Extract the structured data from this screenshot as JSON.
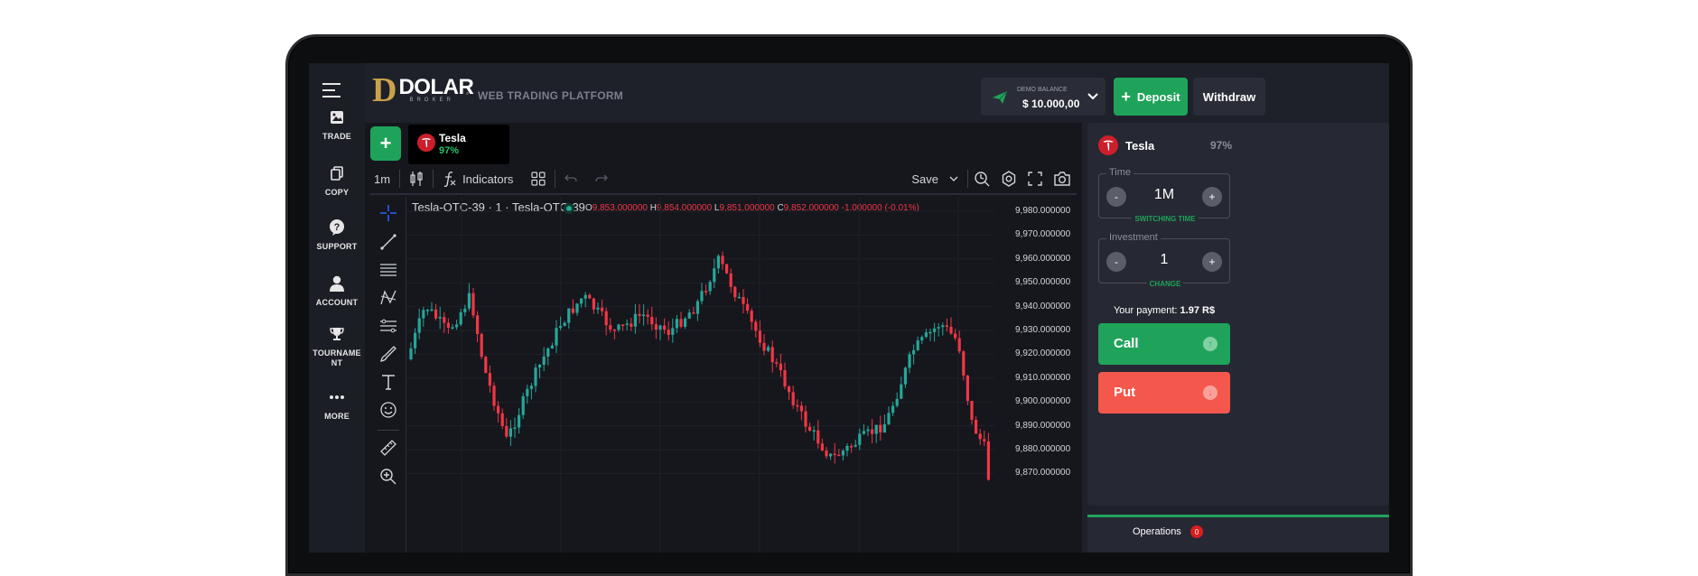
{
  "sidebar": {
    "items": [
      {
        "label": "TRADE",
        "icon": "image-icon"
      },
      {
        "label": "COPY",
        "icon": "copy-icon"
      },
      {
        "label": "SUPPORT",
        "icon": "question-icon"
      },
      {
        "label": "ACCOUNT",
        "icon": "user-icon"
      },
      {
        "label": "TOURNAME\nNT",
        "icon": "trophy-icon"
      },
      {
        "label": "MORE",
        "icon": "more-icon"
      }
    ]
  },
  "header": {
    "logo_letter": "D",
    "logo_word": "DOLAR",
    "logo_sub": "BROKER",
    "platform_label": "WEB TRADING PLATFORM",
    "balance_label": "DEMO BALANCE",
    "balance_value": "$ 10.000,00",
    "deposit_label": "Deposit",
    "withdraw_label": "Withdraw"
  },
  "asset_tab": {
    "name": "Tesla",
    "payout": "97%"
  },
  "toolbar": {
    "interval": "1m",
    "indicators_label": "Indicators",
    "save_label": "Save"
  },
  "legend": {
    "symbol": "Tesla-OTC-39 · 1 · Tesla-OTC-39",
    "open_key": "O",
    "open": "9,853.000000",
    "high_key": "H",
    "high": "9,854.000000",
    "low_key": "L",
    "low": "9,851.000000",
    "close_key": "C",
    "close": "9,852.000000",
    "change": "-1.000000 (-0.01%)"
  },
  "price_axis": {
    "ticks": [
      "9,980.000000",
      "9,970.000000",
      "9,960.000000",
      "9,950.000000",
      "9,940.000000",
      "9,930.000000",
      "9,920.000000",
      "9,910.000000",
      "9,900.000000",
      "9,890.000000",
      "9,880.000000",
      "9,870.000000"
    ]
  },
  "colors": {
    "up": "#26a69a",
    "down": "#f23645",
    "accent_green": "#1fa35a",
    "put_red": "#f4574c"
  },
  "trade_panel": {
    "asset_name": "Tesla",
    "payout": "97%",
    "time_label": "Time",
    "time_value": "1M",
    "time_sub": "SWITCHING TIME",
    "investment_label": "Investment",
    "investment_value": "1",
    "investment_sub": "CHANGE",
    "payment_label": "Your payment:",
    "payment_value": "1.97 R$",
    "call_label": "Call",
    "put_label": "Put",
    "minus": "-",
    "plus": "+"
  },
  "operations": {
    "label": "Operations",
    "count": "0"
  }
}
